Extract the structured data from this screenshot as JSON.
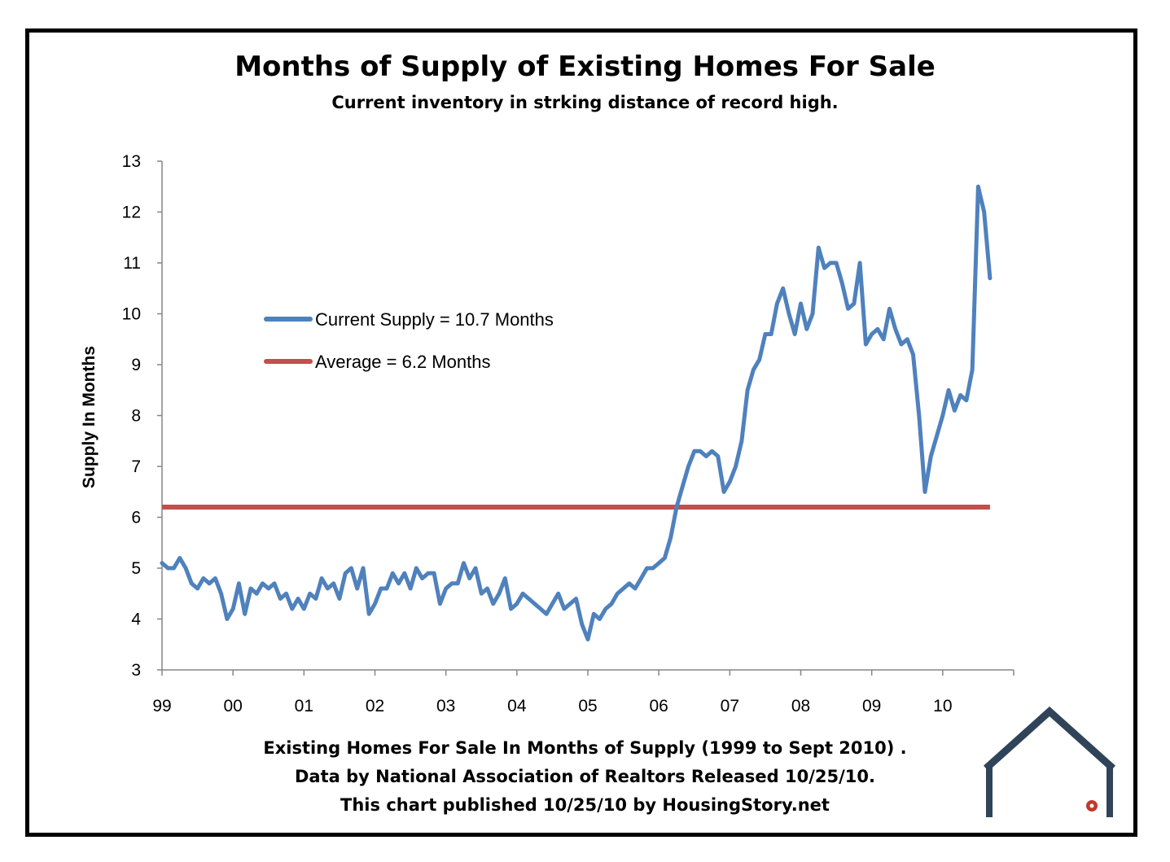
{
  "title": "Months of Supply of Existing Homes For Sale",
  "subtitle": "Current inventory in strking distance of record high.",
  "footer": [
    "Existing Homes For Sale In Months of Supply (1999 to Sept 2010) .",
    "Data by National Association of Realtors Released 10/25/10.",
    "This chart published 10/25/10 by HousingStory.net"
  ],
  "colors": {
    "supply_line": "#4f81bd",
    "average_line": "#c0504d",
    "frame": "#000000",
    "logo": "#2f4459",
    "logo_flower": "#c0392b"
  },
  "logo_icon": "house-logo-icon",
  "chart_data": {
    "type": "line",
    "title": "Months of Supply of Existing Homes For Sale",
    "subtitle": "Current inventory in strking distance of record high.",
    "ylabel": "Supply In Months",
    "xlabel": "",
    "ylim": [
      3,
      13
    ],
    "yticks": [
      3,
      4,
      5,
      6,
      7,
      8,
      9,
      10,
      11,
      12,
      13
    ],
    "xlim": [
      1999,
      2011
    ],
    "xticks": [
      1999,
      2000,
      2001,
      2002,
      2003,
      2004,
      2005,
      2006,
      2007,
      2008,
      2009,
      2010
    ],
    "xtick_labels": [
      "99",
      "00",
      "01",
      "02",
      "03",
      "04",
      "05",
      "06",
      "07",
      "08",
      "09",
      "10"
    ],
    "grid": false,
    "legend": "upper-left",
    "series": [
      {
        "name": "Current Supply = 10.7 Months",
        "x_start": "1999-01",
        "frequency": "monthly",
        "values": [
          5.1,
          5.0,
          5.0,
          5.2,
          5.0,
          4.7,
          4.6,
          4.8,
          4.7,
          4.8,
          4.5,
          4.0,
          4.2,
          4.7,
          4.1,
          4.6,
          4.5,
          4.7,
          4.6,
          4.7,
          4.4,
          4.5,
          4.2,
          4.4,
          4.2,
          4.5,
          4.4,
          4.8,
          4.6,
          4.7,
          4.4,
          4.9,
          5.0,
          4.6,
          5.0,
          4.1,
          4.3,
          4.6,
          4.6,
          4.9,
          4.7,
          4.9,
          4.6,
          5.0,
          4.8,
          4.9,
          4.9,
          4.3,
          4.6,
          4.7,
          4.7,
          5.1,
          4.8,
          5.0,
          4.5,
          4.6,
          4.3,
          4.5,
          4.8,
          4.2,
          4.3,
          4.5,
          4.4,
          4.3,
          4.2,
          4.1,
          4.3,
          4.5,
          4.2,
          4.3,
          4.4,
          3.9,
          3.6,
          4.1,
          4.0,
          4.2,
          4.3,
          4.5,
          4.6,
          4.7,
          4.6,
          4.8,
          5.0,
          5.0,
          5.1,
          5.2,
          5.6,
          6.2,
          6.6,
          7.0,
          7.3,
          7.3,
          7.2,
          7.3,
          7.2,
          6.5,
          6.7,
          7.0,
          7.5,
          8.5,
          8.9,
          9.1,
          9.6,
          9.6,
          10.2,
          10.5,
          10.0,
          9.6,
          10.2,
          9.7,
          10.0,
          11.3,
          10.9,
          11.0,
          11.0,
          10.6,
          10.1,
          10.2,
          11.0,
          9.4,
          9.6,
          9.7,
          9.5,
          10.1,
          9.7,
          9.4,
          9.5,
          9.2,
          8.0,
          6.5,
          7.2,
          7.6,
          8.0,
          8.5,
          8.1,
          8.4,
          8.3,
          8.9,
          12.5,
          12.0,
          10.7
        ]
      },
      {
        "name": "Average = 6.2 Months",
        "x": [
          "1999-01",
          "2010-09"
        ],
        "values": [
          6.2,
          6.2
        ]
      }
    ]
  }
}
